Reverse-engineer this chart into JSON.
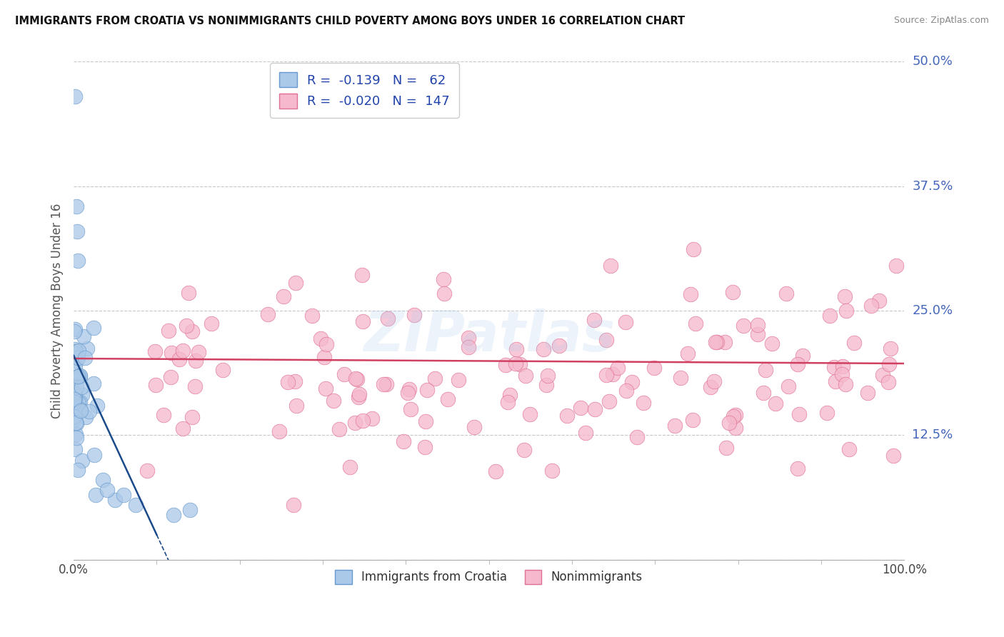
{
  "title": "IMMIGRANTS FROM CROATIA VS NONIMMIGRANTS CHILD POVERTY AMONG BOYS UNDER 16 CORRELATION CHART",
  "source": "Source: ZipAtlas.com",
  "ylabel": "Child Poverty Among Boys Under 16",
  "xlim": [
    0,
    100
  ],
  "ylim": [
    0,
    50
  ],
  "ytick_positions": [
    0,
    12.5,
    25,
    37.5,
    50
  ],
  "ytick_labels": [
    "",
    "12.5%",
    "25.0%",
    "37.5%",
    "50.0%"
  ],
  "color_blue": "#aac8e8",
  "color_blue_edge": "#6699cc",
  "color_pink": "#f5b8cc",
  "color_pink_edge": "#e07090",
  "color_blue_line": "#1a4a8a",
  "color_pink_line": "#d04060",
  "grid_color": "#c8c8c8",
  "background_color": "#ffffff",
  "blue_line_intercept": 20.5,
  "blue_line_slope": -1.8,
  "blue_solid_end": 10,
  "pink_line_intercept": 20.2,
  "pink_line_slope": -0.005
}
